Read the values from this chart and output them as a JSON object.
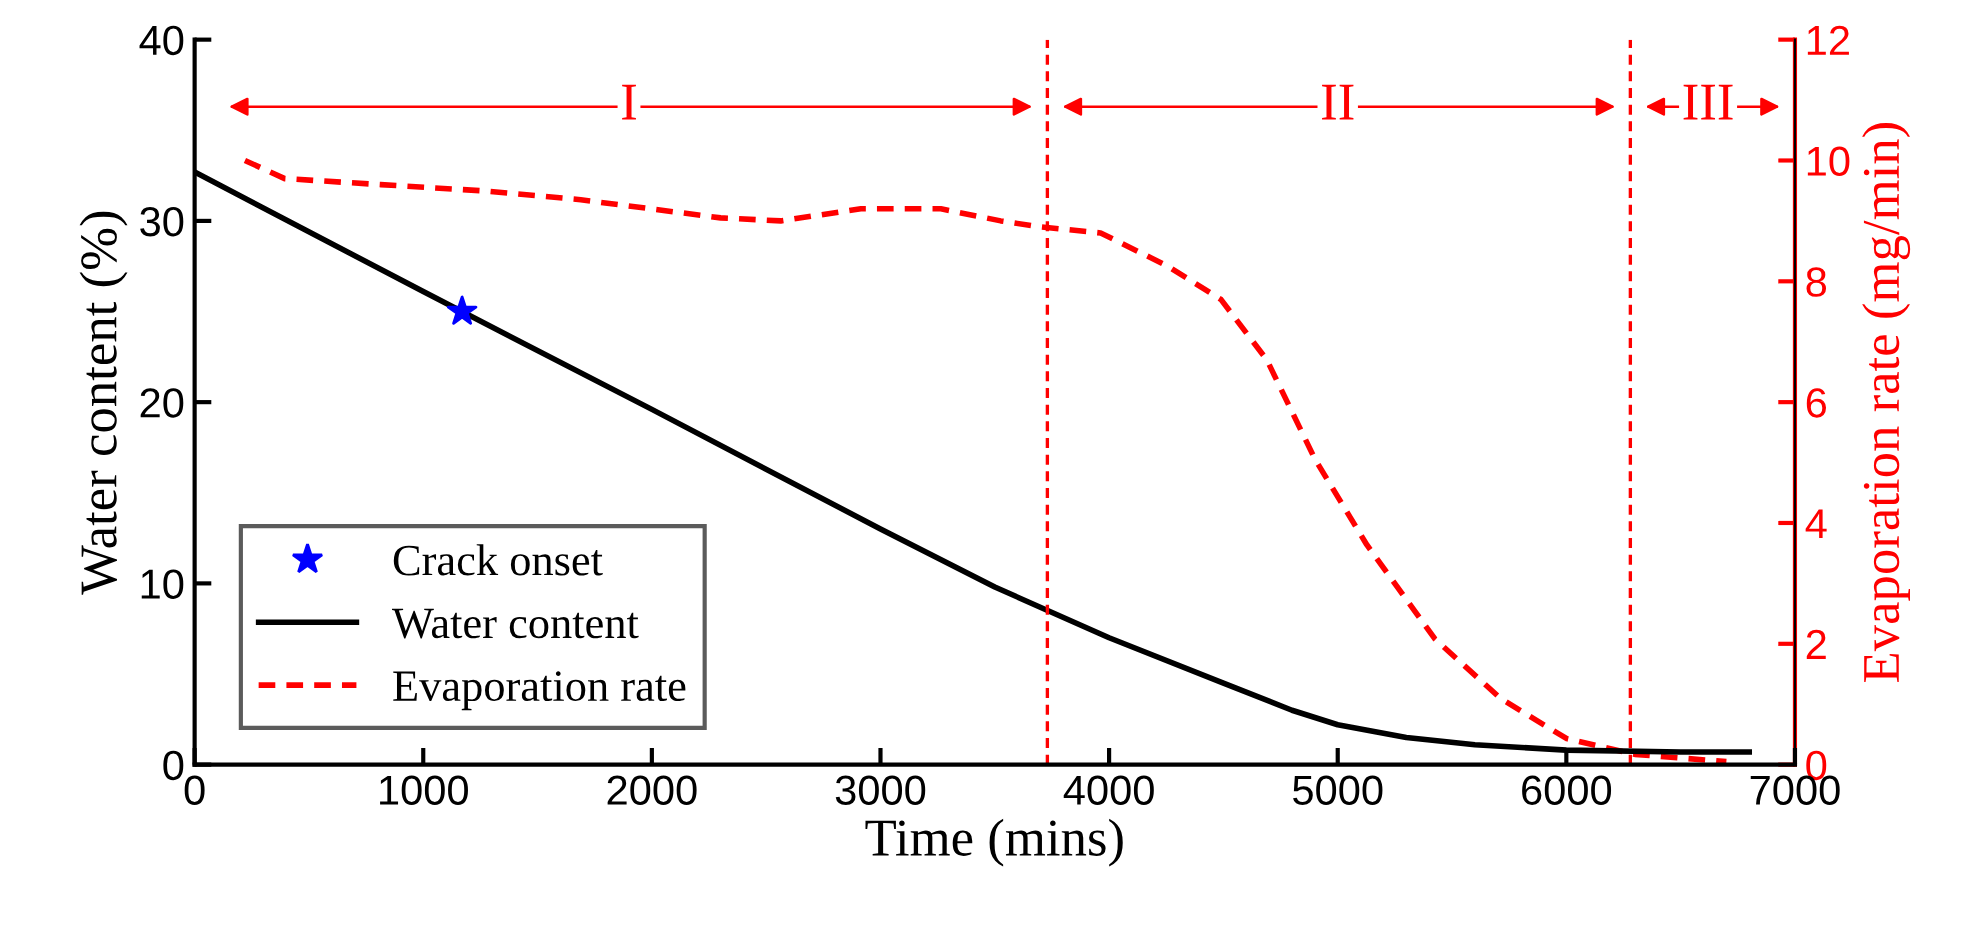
{
  "chart_data": {
    "type": "line",
    "xlabel": "Time (mins)",
    "ylabel": "Water content (%)",
    "y2label": "Evaporation rate (mg/min)",
    "xlim": [
      0,
      7000
    ],
    "xticks": [
      0,
      1000,
      2000,
      3000,
      4000,
      5000,
      6000,
      7000
    ],
    "ylim": [
      0,
      40
    ],
    "yticks": [
      0,
      10,
      20,
      30,
      40
    ],
    "y2lim": [
      0,
      12
    ],
    "y2ticks": [
      0,
      2,
      4,
      6,
      8,
      10,
      12
    ],
    "grid": false,
    "legend": "bottom left",
    "series": [
      {
        "name": "Crack onset",
        "type": "scatter",
        "color": "#0000ff",
        "marker": "star",
        "x": [
          1170
        ],
        "values": [
          25
        ]
      },
      {
        "name": "Water content",
        "color": "#000000",
        "line_style": "solid",
        "x": [
          0,
          1000,
          2000,
          3000,
          3500,
          4000,
          4500,
          4800,
          5000,
          5300,
          5600,
          6000,
          6500,
          6800
        ],
        "values": [
          32.7,
          26.1,
          19.6,
          13.0,
          9.8,
          7.0,
          4.5,
          3.0,
          2.2,
          1.5,
          1.1,
          0.8,
          0.7,
          0.7
        ]
      },
      {
        "name": "Evaporation rate",
        "type": "line",
        "axis": "y2",
        "color": "#ff0000",
        "line_style": "dashed",
        "x": [
          220,
          394,
          814,
          1251,
          1689,
          2301,
          2564,
          2914,
          3264,
          3526,
          3700,
          3963,
          4252,
          4489,
          4690,
          4900,
          5127,
          5425,
          5714,
          6002,
          6300,
          6700
        ],
        "values": [
          10.0,
          9.7,
          9.6,
          9.5,
          9.35,
          9.05,
          9.0,
          9.2,
          9.2,
          9.0,
          8.9,
          8.8,
          8.26,
          7.7,
          6.7,
          5.06,
          3.64,
          2.08,
          1.09,
          0.43,
          0.17,
          0.05
        ]
      }
    ],
    "ref_lines": [
      {
        "axis": "x",
        "value": 3730,
        "color": "#ff0000",
        "line_style": "dashed"
      },
      {
        "axis": "x",
        "value": 6280,
        "color": "#ff0000",
        "line_style": "dashed"
      }
    ],
    "annotations": [
      {
        "text": "I",
        "x": 1900,
        "y": 36.3
      },
      {
        "text": "II",
        "x": 5000,
        "y": 36.3
      },
      {
        "text": "III",
        "x": 6620,
        "y": 36.3
      }
    ]
  }
}
